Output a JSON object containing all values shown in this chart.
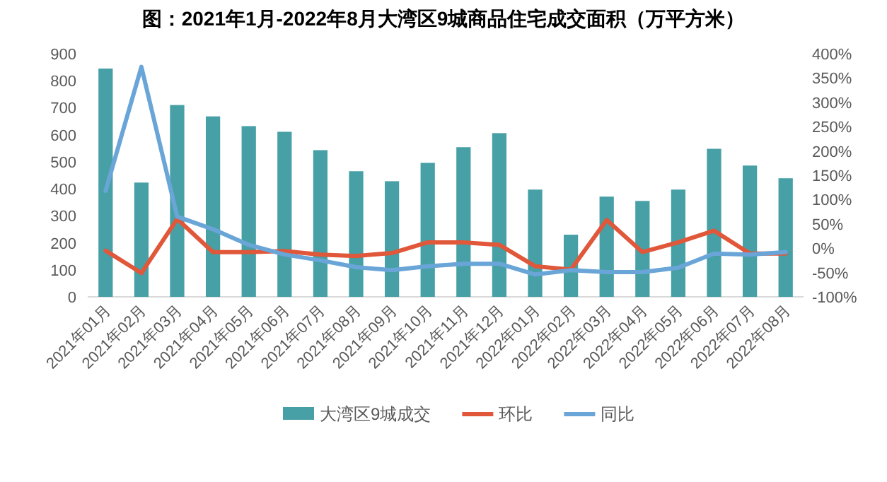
{
  "chart_data": {
    "type": "bar",
    "title": "图：2021年1月-2022年8月大湾区9城商品住宅成交面积（万平方米）",
    "categories": [
      "2021年01月",
      "2021年02月",
      "2021年03月",
      "2021年04月",
      "2021年05月",
      "2021年06月",
      "2021年07月",
      "2021年08月",
      "2021年09月",
      "2021年10月",
      "2021年11月",
      "2021年12月",
      "2022年01月",
      "2022年02月",
      "2022年03月",
      "2022年04月",
      "2022年05月",
      "2022年06月",
      "2022年07月",
      "2022年08月"
    ],
    "series": [
      {
        "name": "大湾区9城成交",
        "color": "#46a0a6",
        "values": [
          845,
          423,
          710,
          668,
          632,
          611,
          543,
          465,
          428,
          496,
          554,
          606,
          397,
          230,
          371,
          355,
          397,
          548,
          486,
          439
        ]
      },
      {
        "type": "line",
        "name": "环比",
        "color": "#e0573a",
        "axis": "y2",
        "values": [
          -5,
          -51,
          60,
          -8,
          -8,
          -6,
          -13,
          -16,
          -10,
          12,
          12,
          7,
          -37,
          -44,
          58,
          -8,
          12,
          36,
          -11,
          -11
        ]
      },
      {
        "type": "line",
        "name": "同比",
        "color": "#6aa5d8",
        "axis": "y2",
        "values": [
          118,
          373,
          65,
          39,
          7,
          -13,
          -25,
          -39,
          -45,
          -37,
          -32,
          -32,
          -54,
          -45,
          -49,
          -49,
          -40,
          -11,
          -13,
          -8
        ]
      }
    ],
    "ylim": [
      0,
      900
    ],
    "yticks": [
      0,
      100,
      200,
      300,
      400,
      500,
      600,
      700,
      800,
      900
    ],
    "y2lim": [
      -100,
      400
    ],
    "y2ticks": [
      {
        "value": -100,
        "label": "-100%"
      },
      {
        "value": -50,
        "label": "-50%"
      },
      {
        "value": 0,
        "label": "0%"
      },
      {
        "value": 50,
        "label": "50%"
      },
      {
        "value": 100,
        "label": "100%"
      },
      {
        "value": 150,
        "label": "150%"
      },
      {
        "value": 200,
        "label": "200%"
      },
      {
        "value": 250,
        "label": "250%"
      },
      {
        "value": 300,
        "label": "300%"
      },
      {
        "value": 350,
        "label": "350%"
      },
      {
        "value": 400,
        "label": "400%"
      }
    ],
    "legend": "bottom"
  }
}
